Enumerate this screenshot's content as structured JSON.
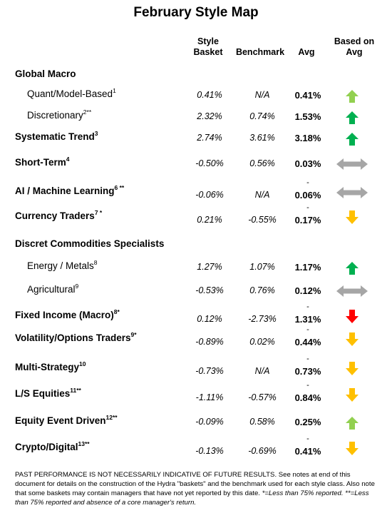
{
  "title": "February Style Map",
  "headers": {
    "style_basket_line1": "Style",
    "style_basket_line2": "Basket",
    "benchmark": "Benchmark",
    "avg": "Avg",
    "based_on_avg_line1": "Based on",
    "based_on_avg_line2": "Avg"
  },
  "colors": {
    "up_strong": "#00b050",
    "up_light": "#92d050",
    "down_yellow": "#ffc000",
    "down_red": "#ff0000",
    "neutral_gray": "#a6a6a6"
  },
  "rows": [
    {
      "label": "Global Macro",
      "sup": "",
      "kind": "category"
    },
    {
      "label": "Quant/Model-Based",
      "sup": "1",
      "kind": "sub",
      "style_basket": "0.41%",
      "benchmark": "N/A",
      "avg": "0.41%",
      "dash": "",
      "indicator": "up-light"
    },
    {
      "label": "Discretionary",
      "sup": "2**",
      "kind": "sub",
      "style_basket": "2.32%",
      "benchmark": "0.74%",
      "avg": "1.53%",
      "dash": "",
      "indicator": "up-strong"
    },
    {
      "label": "Systematic Trend",
      "sup": "3",
      "kind": "category",
      "style_basket": "2.74%",
      "benchmark": "3.61%",
      "avg": "3.18%",
      "dash": "",
      "indicator": "up-strong"
    },
    {
      "label": "Short-Term",
      "sup": "4",
      "kind": "category",
      "style_basket": "-0.50%",
      "benchmark": "0.56%",
      "avg": "0.03%",
      "dash": "",
      "indicator": "neutral"
    },
    {
      "label": "AI / Machine Learning",
      "sup": "6 **",
      "kind": "category",
      "style_basket": "-0.06%",
      "benchmark": "N/A",
      "avg": "0.06%",
      "dash": "-",
      "indicator": "neutral"
    },
    {
      "label": "Currency Traders",
      "sup": "7 *",
      "kind": "category",
      "style_basket": "0.21%",
      "benchmark": "-0.55%",
      "avg": "0.17%",
      "dash": "-",
      "indicator": "down-yellow"
    },
    {
      "label": "Discret Commodities Specialists",
      "sup": "",
      "kind": "category"
    },
    {
      "label": "Energy / Metals",
      "sup": "8",
      "kind": "sub",
      "style_basket": "1.27%",
      "benchmark": "1.07%",
      "avg": "1.17%",
      "dash": "",
      "indicator": "up-strong"
    },
    {
      "label": "Agricultural",
      "sup": "9",
      "kind": "sub",
      "style_basket": "-0.53%",
      "benchmark": "0.76%",
      "avg": "0.12%",
      "dash": "",
      "indicator": "neutral"
    },
    {
      "label": "Fixed Income (Macro)",
      "sup": "8*",
      "kind": "category",
      "style_basket": "0.12%",
      "benchmark": "-2.73%",
      "avg": "1.31%",
      "dash": "-",
      "indicator": "down-red"
    },
    {
      "label": "Volatility/Options Traders",
      "sup": "9*",
      "kind": "category",
      "style_basket": "-0.89%",
      "benchmark": "0.02%",
      "avg": "0.44%",
      "dash": "-",
      "indicator": "down-yellow"
    },
    {
      "label": "Multi-Strategy",
      "sup": "10",
      "kind": "category",
      "style_basket": "-0.73%",
      "benchmark": "N/A",
      "avg": "0.73%",
      "dash": "-",
      "indicator": "down-yellow"
    },
    {
      "label": "L/S Equities",
      "sup": "11**",
      "kind": "category",
      "style_basket": "-1.11%",
      "benchmark": "-0.57%",
      "avg": "0.84%",
      "dash": "-",
      "indicator": "down-yellow"
    },
    {
      "label": "Equity Event Driven",
      "sup": "12**",
      "kind": "category",
      "style_basket": "-0.09%",
      "benchmark": "0.58%",
      "avg": "0.25%",
      "dash": "",
      "indicator": "up-light"
    },
    {
      "label": "Crypto/Digital",
      "sup": "13**",
      "kind": "category",
      "style_basket": "-0.13%",
      "benchmark": "-0.69%",
      "avg": "0.41%",
      "dash": "-",
      "indicator": "down-yellow"
    }
  ],
  "footnote": {
    "text": "PAST PERFORMANCE IS NOT NECESSARILY INDICATIVE OF FUTURE RESULTS.  See notes at end of this document for details on the construction of the Hydra \"baskets\" and the benchmark used for each style class.  Also note that some baskets may contain managers that have not yet reported by this date.  ",
    "italic": "*=Less than 75% reported.  **=Less than 75% reported and absence of a core manager's return."
  }
}
